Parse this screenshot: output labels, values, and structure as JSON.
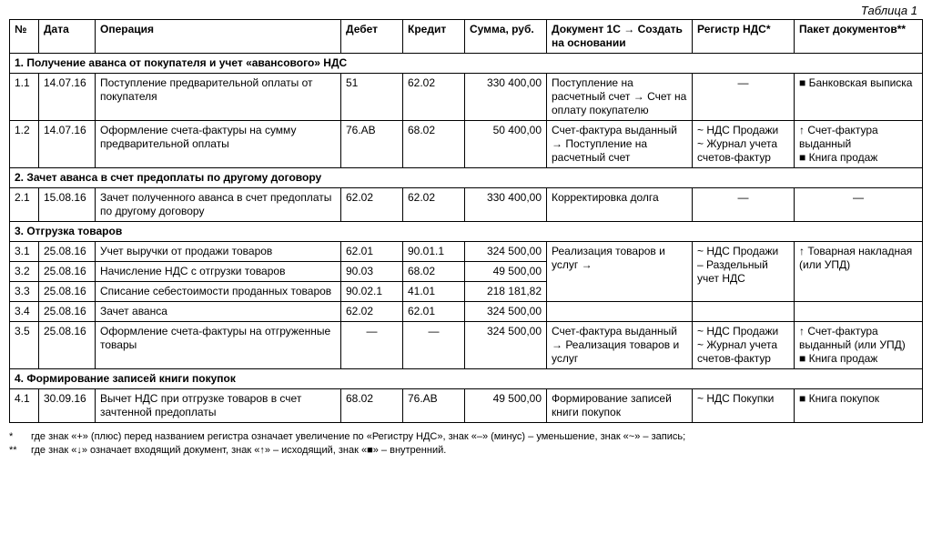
{
  "caption": "Таблица 1",
  "columns": {
    "no": "№",
    "date": "Дата",
    "operation": "Операция",
    "debit": "Дебет",
    "credit": "Кредит",
    "sum": "Сумма, руб.",
    "doc": "Документ 1С → Создать на основании",
    "reg": "Регистр НДС*",
    "pack": "Пакет документов**"
  },
  "sect1": "1.  Получение аванса от покупателя и учет «авансового» НДС",
  "r11": {
    "no": "1.1",
    "date": "14.07.16",
    "op": "Поступление предварительной оплаты от покупателя",
    "debit": "51",
    "credit": "62.02",
    "sum": "330 400,00",
    "doc": "Поступление на расчетный счет → Счет на оплату покупателю",
    "reg": "—",
    "pack": "■ Банковская выписка"
  },
  "r12": {
    "no": "1.2",
    "date": "14.07.16",
    "op": "Оформление счета-фактуры на сумму предварительной оплаты",
    "debit": "76.АВ",
    "credit": "68.02",
    "sum": "50 400,00",
    "doc": "Счет-фактура выданный → Поступление на расчетный счет",
    "reg": "~ НДС Продажи\n~ Журнал учета счетов-фактур",
    "pack": "↑ Счет-фактура выданный\n■ Книга продаж"
  },
  "sect2": "2.  Зачет аванса в счет предоплаты по другому договору",
  "r21": {
    "no": "2.1",
    "date": "15.08.16",
    "op": "Зачет полученного аванса в счет предоплаты по другому договору",
    "debit": "62.02",
    "credit": "62.02",
    "sum": "330 400,00",
    "doc": "Корректировка долга",
    "reg": "—",
    "pack": "—"
  },
  "sect3": "3.  Отгрузка товаров",
  "r31": {
    "no": "3.1",
    "date": "25.08.16",
    "op": "Учет выручки от продажи товаров",
    "debit": "62.01",
    "credit": "90.01.1",
    "sum": "324 500,00"
  },
  "r32": {
    "no": "3.2",
    "date": "25.08.16",
    "op": "Начисление НДС с отгрузки товаров",
    "debit": "90.03",
    "credit": "68.02",
    "sum": "49 500,00"
  },
  "r33": {
    "no": "3.3",
    "date": "25.08.16",
    "op": "Списание себестоимости проданных товаров",
    "debit": "90.02.1",
    "credit": "41.01",
    "sum": "218 181,82"
  },
  "r3doc": "Реализация товаров и услуг →",
  "r3reg": "~ НДС Продажи\n– Раздельный учет НДС",
  "r3pack": "↑ Товарная накладная (или УПД)",
  "r34": {
    "no": "3.4",
    "date": "25.08.16",
    "op": "Зачет аванса",
    "debit": "62.02",
    "credit": "62.01",
    "sum": "324 500,00"
  },
  "r35": {
    "no": "3.5",
    "date": "25.08.16",
    "op": "Оформление счета-фактуры на отгруженные товары",
    "debit": "—",
    "credit": "—",
    "sum": "324 500,00",
    "doc": "Счет-фактура выданный → Реализация товаров и услуг",
    "reg": "~ НДС Продажи\n~ Журнал учета счетов-фактур",
    "pack": "↑ Счет-фактура выданный (или УПД)\n■ Книга продаж"
  },
  "sect4": "4.  Формирование записей книги покупок",
  "r41": {
    "no": "4.1",
    "date": "30.09.16",
    "op": "Вычет НДС при отгрузке товаров в счет зачтенной предоплаты",
    "debit": "68.02",
    "credit": "76.АВ",
    "sum": "49 500,00",
    "doc": "Формирование записей книги покупок",
    "reg": "~ НДС Покупки",
    "pack": "■ Книга покупок"
  },
  "footnotes": {
    "m1": "*",
    "t1": "где знак «+» (плюс) перед названием регистра означает увеличение по «Регистру НДС», знак «–» (минус) – уменьшение, знак «~» – запись;",
    "m2": "**",
    "t2": "где знак «↓» означает входящий документ, знак «↑» – исходящий, знак «■» – внутренний."
  }
}
